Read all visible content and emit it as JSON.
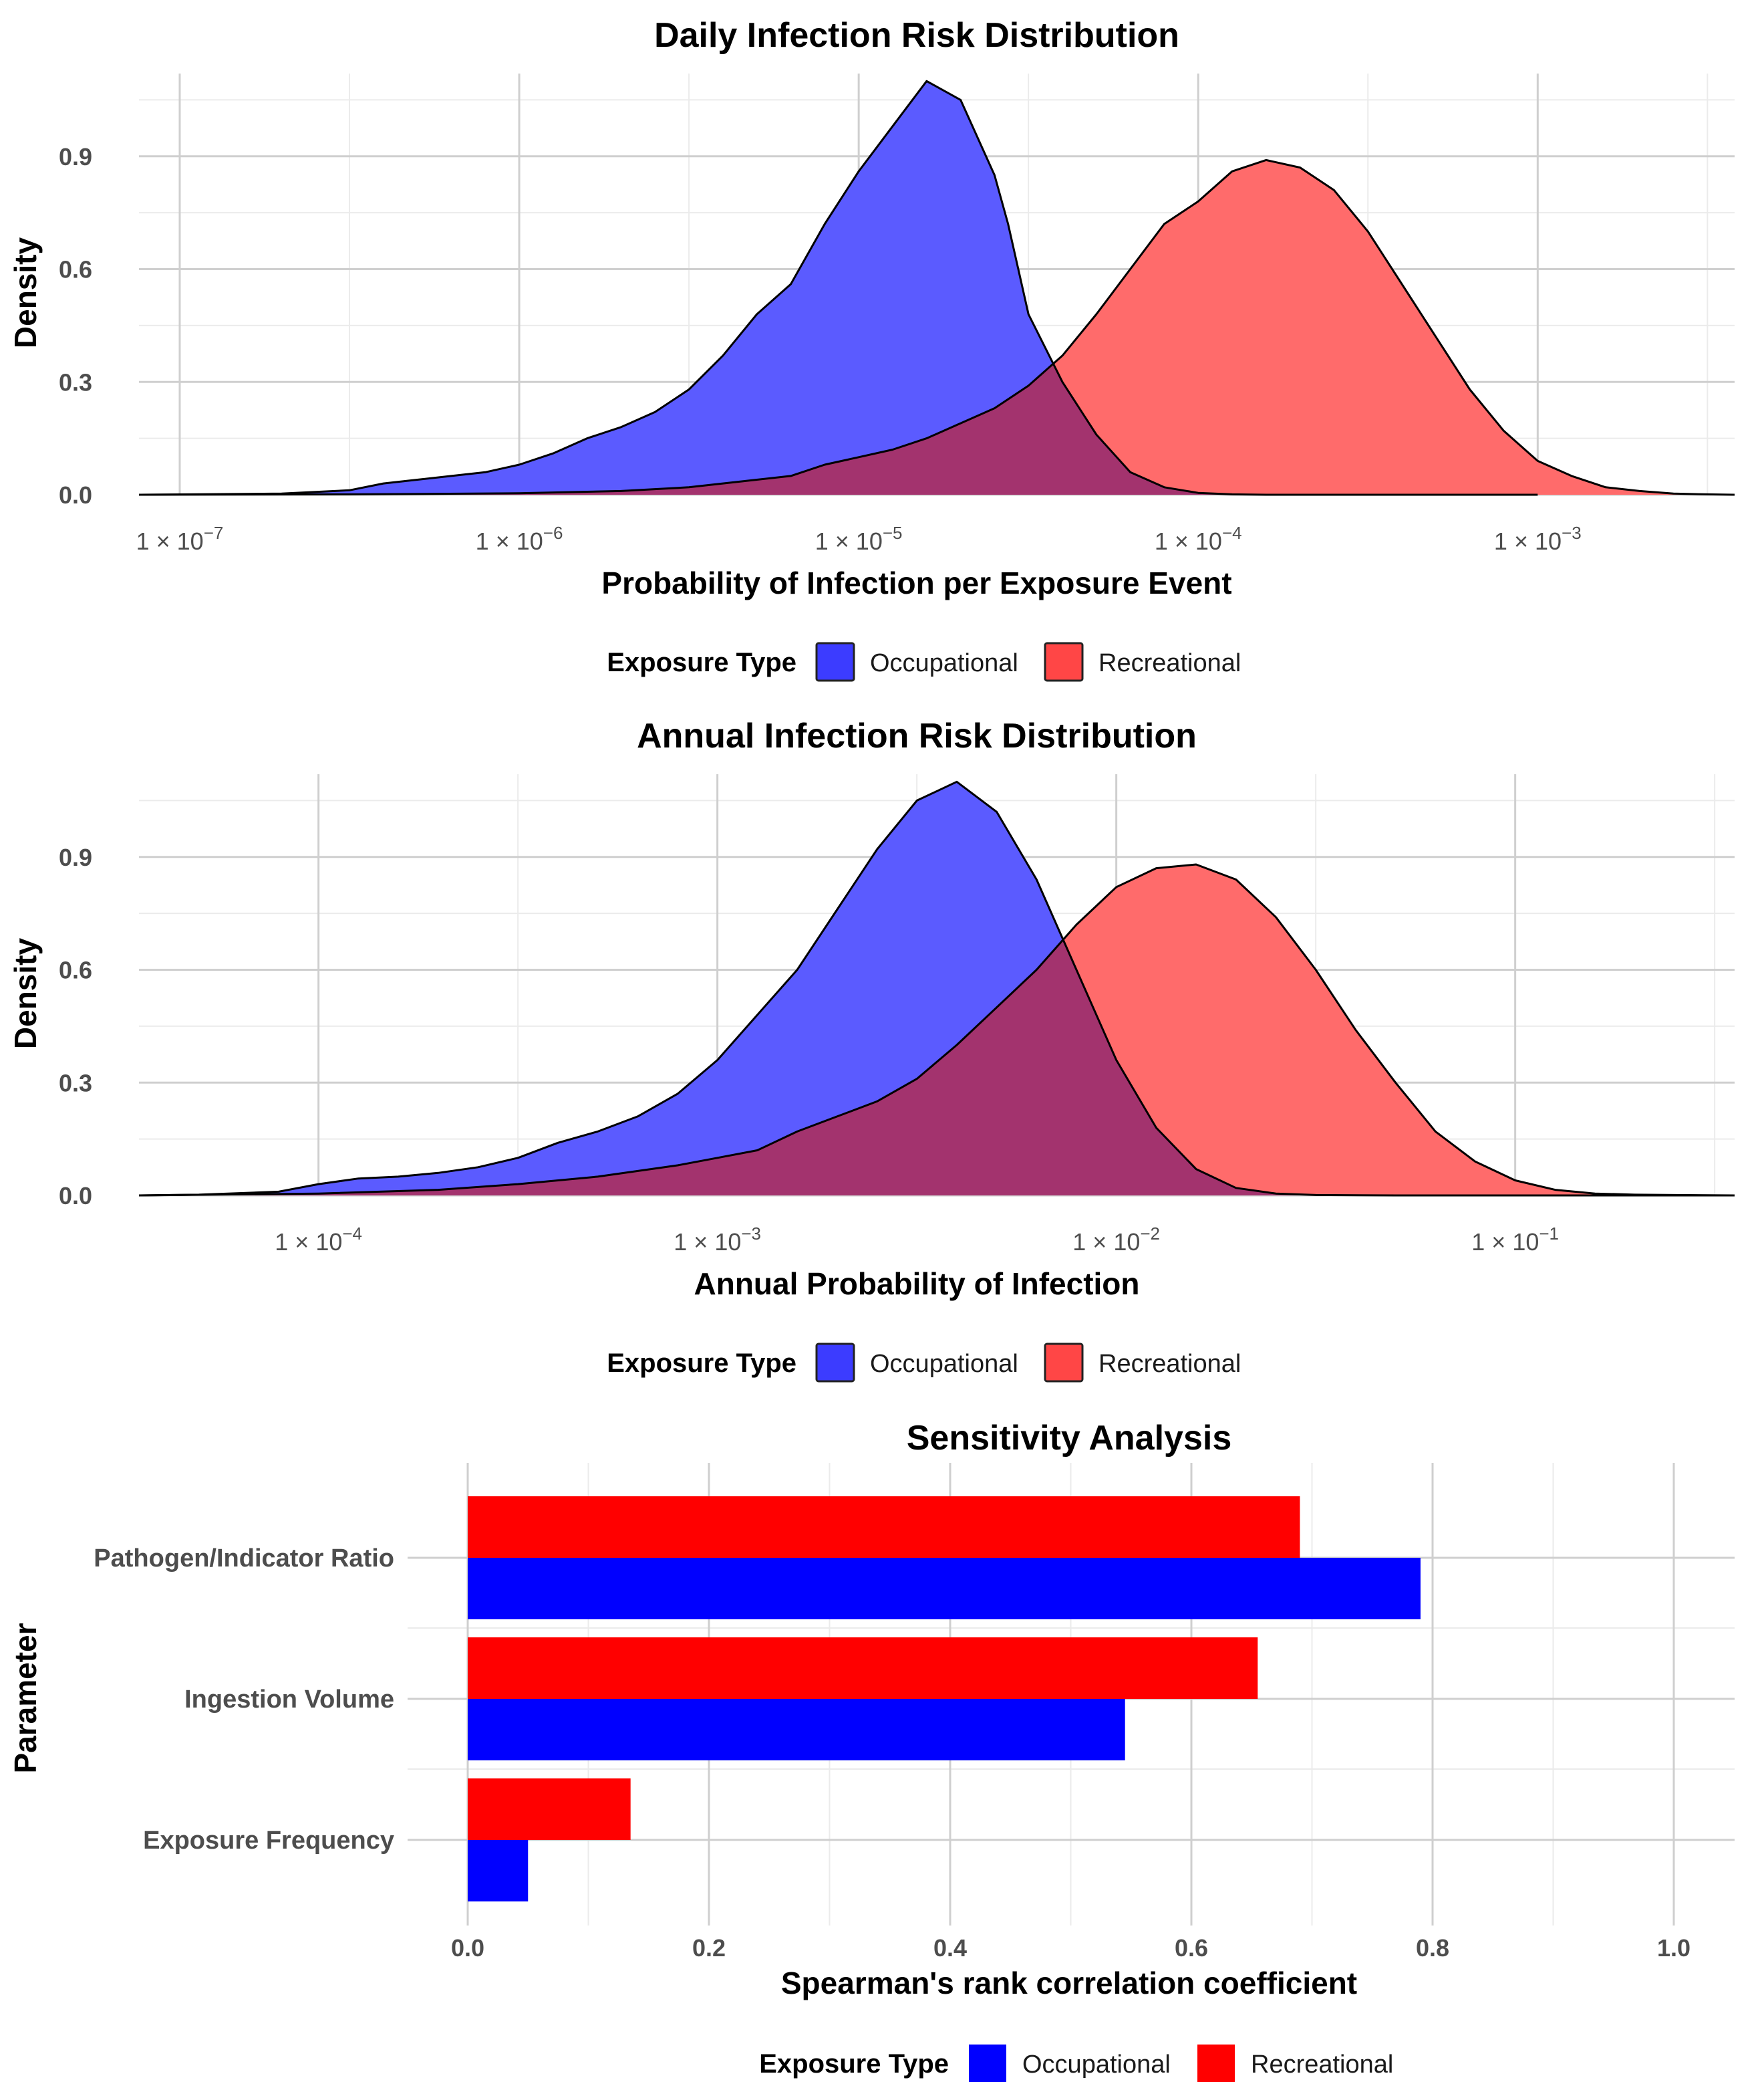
{
  "colors": {
    "occupational": "#0000ff",
    "recreational": "#ff0000",
    "occupational_fill": "#5b5bff",
    "recreational_fill": "#ff6b6b",
    "overlap_fill": "#a3336e",
    "grid_major": "#cfcfcf",
    "grid_minor": "#ebebeb"
  },
  "chart_data": [
    {
      "type": "area",
      "title": "Daily Infection Risk Distribution",
      "xlabel": "Probability of Infection per Exposure Event",
      "ylabel": "Density",
      "xscale": "log10",
      "xlim": [
        -7.12,
        -2.42
      ],
      "ylim": [
        0,
        1.12
      ],
      "xticks": [
        {
          "value": -7,
          "base": "1 × 10",
          "exp": "−7"
        },
        {
          "value": -6,
          "base": "1 × 10",
          "exp": "−6"
        },
        {
          "value": -5,
          "base": "1 × 10",
          "exp": "−5"
        },
        {
          "value": -4,
          "base": "1 × 10",
          "exp": "−4"
        },
        {
          "value": -3,
          "base": "1 × 10",
          "exp": "−3"
        }
      ],
      "yticks": [
        {
          "value": 0,
          "label": "0.0"
        },
        {
          "value": 0.3,
          "label": "0.3"
        },
        {
          "value": 0.6,
          "label": "0.6"
        },
        {
          "value": 0.9,
          "label": "0.9"
        }
      ],
      "series": [
        {
          "name": "Occupational",
          "x": [
            -7.12,
            -6.7,
            -6.5,
            -6.4,
            -6.3,
            -6.2,
            -6.1,
            -6.0,
            -5.9,
            -5.8,
            -5.7,
            -5.6,
            -5.5,
            -5.4,
            -5.3,
            -5.2,
            -5.1,
            -5.0,
            -4.9,
            -4.8,
            -4.7,
            -4.6,
            -4.56,
            -4.5,
            -4.4,
            -4.3,
            -4.2,
            -4.1,
            -4.0,
            -3.9,
            -3.8,
            -3.7,
            -3.6,
            -3.5,
            -3.3,
            -3.0
          ],
          "y": [
            0.0,
            0.003,
            0.012,
            0.03,
            0.04,
            0.05,
            0.06,
            0.08,
            0.11,
            0.15,
            0.18,
            0.22,
            0.28,
            0.37,
            0.48,
            0.56,
            0.72,
            0.86,
            0.98,
            1.1,
            1.05,
            0.85,
            0.72,
            0.48,
            0.3,
            0.16,
            0.06,
            0.02,
            0.005,
            0.001,
            0,
            0,
            0,
            0,
            0,
            0
          ]
        },
        {
          "name": "Recreational",
          "x": [
            -7.12,
            -6.5,
            -6.0,
            -5.7,
            -5.5,
            -5.3,
            -5.2,
            -5.1,
            -5.0,
            -4.9,
            -4.8,
            -4.7,
            -4.6,
            -4.5,
            -4.4,
            -4.3,
            -4.2,
            -4.1,
            -4.0,
            -3.9,
            -3.8,
            -3.7,
            -3.6,
            -3.5,
            -3.4,
            -3.3,
            -3.2,
            -3.1,
            -3.0,
            -2.9,
            -2.8,
            -2.7,
            -2.6,
            -2.5,
            -2.42
          ],
          "y": [
            0.0,
            0.001,
            0.004,
            0.01,
            0.02,
            0.04,
            0.05,
            0.08,
            0.1,
            0.12,
            0.15,
            0.19,
            0.23,
            0.29,
            0.37,
            0.48,
            0.6,
            0.72,
            0.78,
            0.86,
            0.89,
            0.87,
            0.81,
            0.7,
            0.56,
            0.42,
            0.28,
            0.17,
            0.09,
            0.05,
            0.02,
            0.01,
            0.003,
            0.001,
            0.0
          ]
        }
      ],
      "legend": {
        "title": "Exposure Type",
        "entries": [
          "Occupational",
          "Recreational"
        ],
        "position": "bottom"
      }
    },
    {
      "type": "area",
      "title": "Annual Infection Risk Distribution",
      "xlabel": "Annual Probability of Infection",
      "ylabel": "Density",
      "xscale": "log10",
      "xlim": [
        -4.45,
        -0.45
      ],
      "ylim": [
        0,
        1.12
      ],
      "xticks": [
        {
          "value": -4,
          "base": "1 × 10",
          "exp": "−4"
        },
        {
          "value": -3,
          "base": "1 × 10",
          "exp": "−3"
        },
        {
          "value": -2,
          "base": "1 × 10",
          "exp": "−2"
        },
        {
          "value": -1,
          "base": "1 × 10",
          "exp": "−1"
        }
      ],
      "yticks": [
        {
          "value": 0,
          "label": "0.0"
        },
        {
          "value": 0.3,
          "label": "0.3"
        },
        {
          "value": 0.6,
          "label": "0.6"
        },
        {
          "value": 0.9,
          "label": "0.9"
        }
      ],
      "series": [
        {
          "name": "Occupational",
          "x": [
            -4.45,
            -4.3,
            -4.1,
            -4.0,
            -3.9,
            -3.8,
            -3.7,
            -3.6,
            -3.5,
            -3.4,
            -3.3,
            -3.2,
            -3.1,
            -3.0,
            -2.9,
            -2.8,
            -2.7,
            -2.6,
            -2.5,
            -2.4,
            -2.3,
            -2.2,
            -2.1,
            -2.0,
            -1.9,
            -1.8,
            -1.7,
            -1.6,
            -1.5,
            -1.3,
            -1.0,
            -0.45
          ],
          "y": [
            0.0,
            0.002,
            0.01,
            0.03,
            0.045,
            0.05,
            0.06,
            0.075,
            0.1,
            0.14,
            0.17,
            0.21,
            0.27,
            0.36,
            0.48,
            0.6,
            0.76,
            0.92,
            1.05,
            1.1,
            1.02,
            0.84,
            0.6,
            0.36,
            0.18,
            0.07,
            0.02,
            0.005,
            0.001,
            0,
            0,
            0
          ]
        },
        {
          "name": "Recreational",
          "x": [
            -4.45,
            -4.0,
            -3.7,
            -3.5,
            -3.3,
            -3.1,
            -3.0,
            -2.9,
            -2.8,
            -2.7,
            -2.6,
            -2.5,
            -2.4,
            -2.3,
            -2.2,
            -2.1,
            -2.0,
            -1.9,
            -1.8,
            -1.7,
            -1.6,
            -1.5,
            -1.4,
            -1.3,
            -1.2,
            -1.1,
            -1.0,
            -0.9,
            -0.8,
            -0.7,
            -0.6,
            -0.45
          ],
          "y": [
            0.0,
            0.005,
            0.015,
            0.03,
            0.05,
            0.08,
            0.1,
            0.12,
            0.17,
            0.21,
            0.25,
            0.31,
            0.4,
            0.5,
            0.6,
            0.72,
            0.82,
            0.87,
            0.88,
            0.84,
            0.74,
            0.6,
            0.44,
            0.3,
            0.17,
            0.09,
            0.04,
            0.015,
            0.005,
            0.002,
            0.001,
            0.0
          ]
        }
      ],
      "legend": {
        "title": "Exposure Type",
        "entries": [
          "Occupational",
          "Recreational"
        ],
        "position": "bottom"
      }
    },
    {
      "type": "bar",
      "orientation": "horizontal",
      "title": "Sensitivity Analysis",
      "xlabel": "Spearman's rank correlation coefficient",
      "ylabel": "Parameter",
      "xlim": [
        0,
        1.0
      ],
      "xticks": [
        {
          "value": 0.0,
          "label": "0.0"
        },
        {
          "value": 0.2,
          "label": "0.2"
        },
        {
          "value": 0.4,
          "label": "0.4"
        },
        {
          "value": 0.6,
          "label": "0.6"
        },
        {
          "value": 0.8,
          "label": "0.8"
        },
        {
          "value": 1.0,
          "label": "1.0"
        }
      ],
      "categories": [
        "Pathogen/Indicator Ratio",
        "Ingestion Volume",
        "Exposure Frequency"
      ],
      "series": [
        {
          "name": "Recreational",
          "values": [
            0.69,
            0.655,
            0.135
          ]
        },
        {
          "name": "Occupational",
          "values": [
            0.79,
            0.545,
            0.05
          ]
        }
      ],
      "legend": {
        "title": "Exposure Type",
        "entries": [
          "Occupational",
          "Recreational"
        ],
        "position": "bottom"
      }
    }
  ]
}
